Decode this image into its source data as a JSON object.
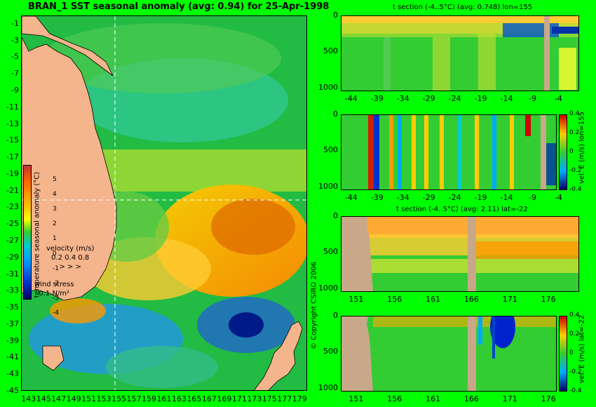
{
  "map": {
    "title": "BRAN_1 SST seasonal anomaly (avg: 0.94) for 25-Apr-1998",
    "y_ticks": [
      "-1",
      "-3",
      "-5",
      "-7",
      "-9",
      "-11",
      "-13",
      "-15",
      "-17",
      "-19",
      "-21",
      "-23",
      "-25",
      "-27",
      "-29",
      "-31",
      "-33",
      "-35",
      "-37",
      "-39",
      "-41",
      "-43",
      "-45"
    ],
    "x_ticks": [
      "143",
      "145",
      "147",
      "149",
      "151",
      "153",
      "155",
      "157",
      "159",
      "161",
      "163",
      "165",
      "167",
      "169",
      "171",
      "173",
      "175",
      "177",
      "179"
    ],
    "colorbar": {
      "ticks": [
        "5",
        "4",
        "3",
        "2",
        "1",
        "0",
        "-1",
        "-2",
        "-3",
        "-4"
      ],
      "label": "temperature seasonal anomaly (°C)"
    },
    "velocity_legend": {
      "label": "velocity (m/s)",
      "values": "0.2 0.4 0.8"
    },
    "wind_legend": {
      "label": "wind stress",
      "value": "0.1 N/m²"
    }
  },
  "panels": [
    {
      "title": "t section (-4..5°C) (avg: 0.748) lon=155",
      "y_ticks": [
        "0",
        "500",
        "1000"
      ],
      "x_ticks": [
        "-44",
        "-39",
        "-34",
        "-29",
        "-24",
        "-19",
        "-14",
        "-9",
        "-4"
      ]
    },
    {
      "title": "",
      "y_ticks": [
        "0",
        "500",
        "1000"
      ],
      "x_ticks": [
        "-44",
        "-39",
        "-34",
        "-29",
        "-24",
        "-19",
        "-14",
        "-9",
        "-4"
      ],
      "colorbar": {
        "ticks": [
          "0.4",
          "0.2",
          "0",
          "-0.2",
          "-0.4"
        ],
        "label": "vel. E (m/s) lon=155"
      }
    },
    {
      "title": "t section (-4..5°C) (avg: 2.11) lat=-22",
      "y_ticks": [
        "0",
        "500",
        "1000"
      ],
      "x_ticks": [
        "151",
        "156",
        "161",
        "166",
        "171",
        "176"
      ]
    },
    {
      "title": "",
      "y_ticks": [
        "0",
        "500",
        "1000"
      ],
      "x_ticks": [
        "151",
        "156",
        "161",
        "166",
        "171",
        "176"
      ],
      "colorbar": {
        "ticks": [
          "0.4",
          "0.2",
          "0",
          "-0.2",
          "-0.4"
        ],
        "label": "vel. E (m/s) lat=-22"
      }
    }
  ],
  "copyright": "© Copyright CSIRO 2006",
  "chart_data": [
    {
      "type": "heatmap",
      "title": "BRAN_1 SST seasonal anomaly (avg: 0.94) for 25-Apr-1998",
      "xlim": [
        142,
        180
      ],
      "ylim": [
        -45,
        0
      ],
      "colorbar_range": [
        -4,
        5
      ],
      "colorbar_label": "temperature seasonal anomaly (°C)"
    },
    {
      "type": "heatmap",
      "title": "t section (-4..5°C) (avg: 0.748) lon=155",
      "xlim": [
        -46,
        0
      ],
      "ylim": [
        1050,
        0
      ]
    },
    {
      "type": "heatmap",
      "xlim": [
        -46,
        0
      ],
      "ylim": [
        1050,
        0
      ],
      "colorbar_range": [
        -0.4,
        0.4
      ],
      "colorbar_label": "vel. E (m/s) lon=155"
    },
    {
      "type": "heatmap",
      "title": "t section (-4..5°C) (avg: 2.11) lat=-22",
      "xlim": [
        149,
        180
      ],
      "ylim": [
        1050,
        0
      ]
    },
    {
      "type": "heatmap",
      "xlim": [
        149,
        180
      ],
      "ylim": [
        1050,
        0
      ],
      "colorbar_range": [
        -0.4,
        0.4
      ],
      "colorbar_label": "vel. E (m/s) lat=-22"
    }
  ]
}
